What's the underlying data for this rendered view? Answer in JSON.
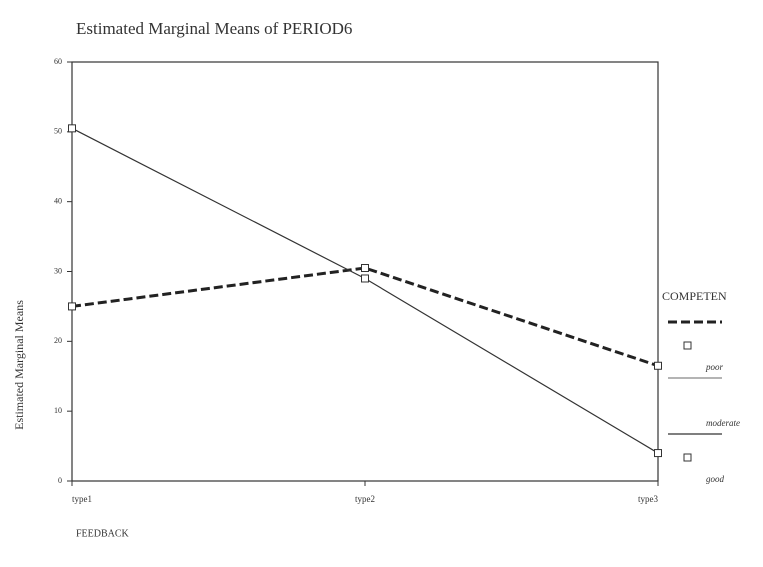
{
  "chart_data": {
    "type": "line",
    "title": "Estimated Marginal Means of PERIOD6",
    "x_label": "FEEDBACK",
    "y_label": "Estimated Marginal Means",
    "categories": [
      "type1",
      "type2",
      "type3"
    ],
    "ylim": [
      0,
      60
    ],
    "yticks": [
      0,
      10,
      20,
      30,
      40,
      50,
      60
    ],
    "legend_title": "COMPETEN",
    "legend": "right",
    "series": [
      {
        "name": "poor",
        "color": "#222222",
        "style": "dashed",
        "marker": "square",
        "values": [
          25,
          30.5,
          16.5
        ]
      },
      {
        "name": "moderate",
        "color": "#888888",
        "style": "solid",
        "values": [
          null,
          null,
          null
        ]
      },
      {
        "name": "good",
        "color": "#333333",
        "style": "solid",
        "marker": "square",
        "values": [
          50.5,
          29,
          4
        ]
      }
    ]
  }
}
